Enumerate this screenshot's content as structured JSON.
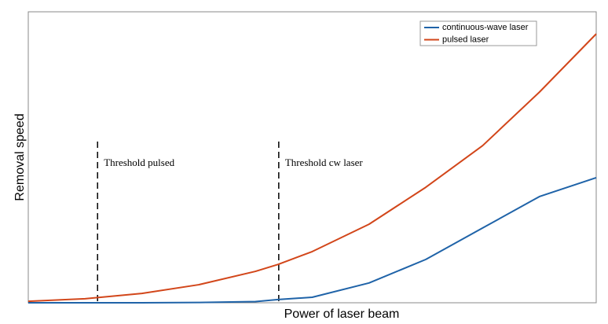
{
  "chart_data": {
    "type": "line",
    "xlabel": "Power of laser beam",
    "ylabel": "Removal speed",
    "x": [
      0,
      10,
      20,
      30,
      40,
      44,
      50,
      60,
      70,
      80,
      90,
      100
    ],
    "series": [
      {
        "name": "continuous-wave laser",
        "color": "#1f63a8",
        "values": [
          0,
          0,
          0,
          0.1,
          0.4,
          1.1,
          1.9,
          6.8,
          14.9,
          25.7,
          36.5,
          43
        ]
      },
      {
        "name": "pulsed laser",
        "color": "#d2461a",
        "values": [
          0.5,
          1.4,
          3.2,
          6.2,
          10.8,
          13.2,
          17.6,
          27,
          39.7,
          54,
          72.4,
          92.4
        ]
      }
    ],
    "thresholds": [
      {
        "label": "Threshold pulsed",
        "x": 12.2,
        "y_top": 55.4
      },
      {
        "label": "Threshold cw laser",
        "x": 44.1,
        "y_top": 55.4
      }
    ],
    "xlim": [
      0,
      100
    ],
    "ylim": [
      0,
      100
    ],
    "legend": "upper-right"
  }
}
